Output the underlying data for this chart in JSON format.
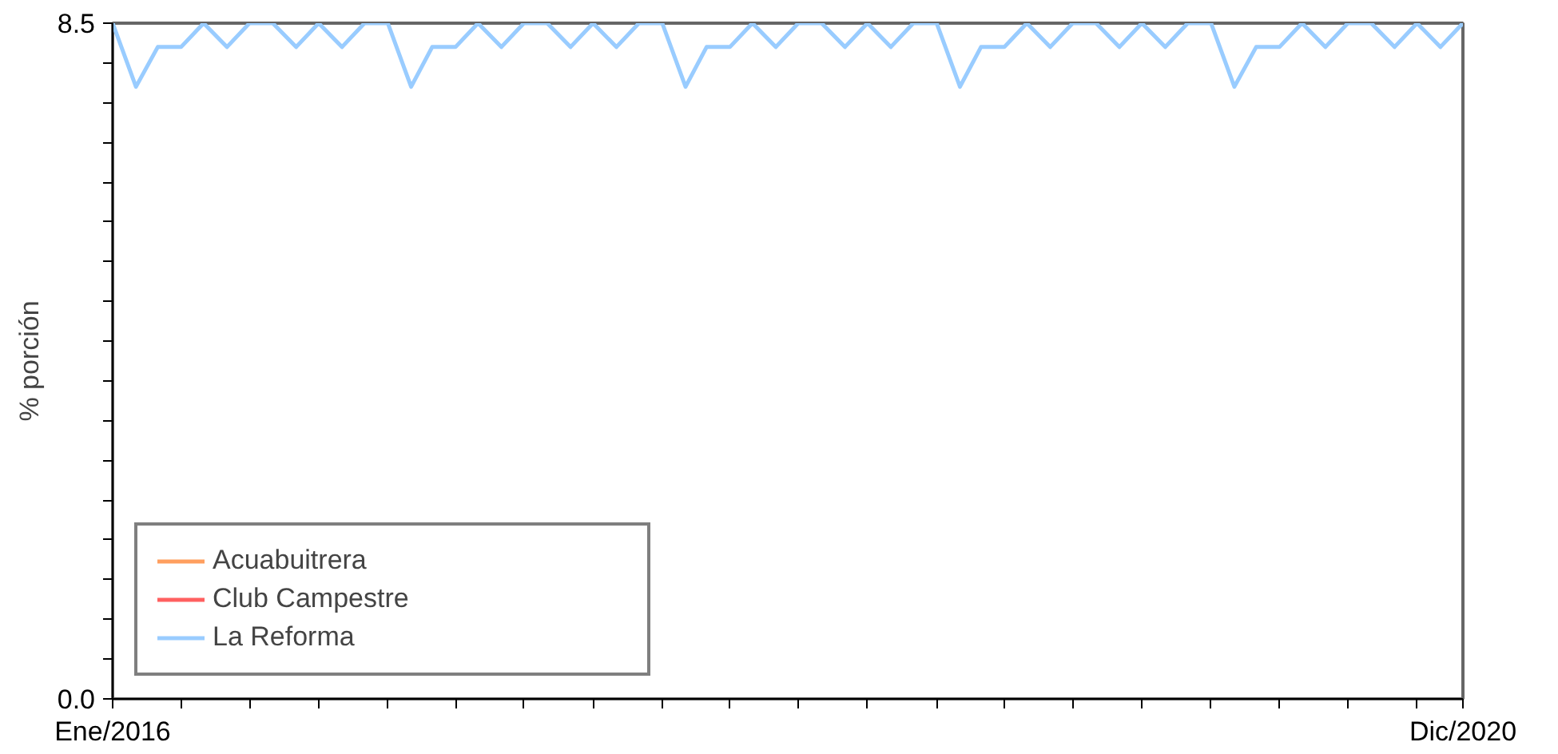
{
  "chart_data": {
    "type": "line",
    "ylabel": "% porción",
    "x": [
      "2016-01",
      "2016-02",
      "2016-03",
      "2016-04",
      "2016-05",
      "2016-06",
      "2016-07",
      "2016-08",
      "2016-09",
      "2016-10",
      "2016-11",
      "2016-12",
      "2017-01",
      "2017-02",
      "2017-03",
      "2017-04",
      "2017-05",
      "2017-06",
      "2017-07",
      "2017-08",
      "2017-09",
      "2017-10",
      "2017-11",
      "2017-12",
      "2018-01",
      "2018-02",
      "2018-03",
      "2018-04",
      "2018-05",
      "2018-06",
      "2018-07",
      "2018-08",
      "2018-09",
      "2018-10",
      "2018-11",
      "2018-12",
      "2019-01",
      "2019-02",
      "2019-03",
      "2019-04",
      "2019-05",
      "2019-06",
      "2019-07",
      "2019-08",
      "2019-09",
      "2019-10",
      "2019-11",
      "2019-12",
      "2020-01",
      "2020-02",
      "2020-03",
      "2020-04",
      "2020-05",
      "2020-06",
      "2020-07",
      "2020-08",
      "2020-09",
      "2020-10",
      "2020-11",
      "2020-12"
    ],
    "series": [
      {
        "name": "Acuabuitrera",
        "color": "#ff9f5f",
        "values": [
          null,
          null,
          null,
          null,
          null,
          null,
          null,
          null,
          null,
          null,
          null,
          null,
          null,
          null,
          null,
          null,
          null,
          null,
          null,
          null,
          null,
          null,
          null,
          null,
          null,
          null,
          null,
          null,
          null,
          null,
          null,
          null,
          null,
          null,
          null,
          null,
          null,
          null,
          null,
          null,
          null,
          null,
          null,
          null,
          null,
          null,
          null,
          null,
          null,
          null,
          null,
          null,
          null,
          null,
          null,
          null,
          null,
          null,
          null,
          null
        ]
      },
      {
        "name": "Club Campestre",
        "color": "#ff6060",
        "values": [
          null,
          null,
          null,
          null,
          null,
          null,
          null,
          null,
          null,
          null,
          null,
          null,
          null,
          null,
          null,
          null,
          null,
          null,
          null,
          null,
          null,
          null,
          null,
          null,
          null,
          null,
          null,
          null,
          null,
          null,
          null,
          null,
          null,
          null,
          null,
          null,
          null,
          null,
          null,
          null,
          null,
          null,
          null,
          null,
          null,
          null,
          null,
          null,
          null,
          null,
          null,
          null,
          null,
          null,
          null,
          null,
          null,
          null,
          null,
          null
        ]
      },
      {
        "name": "La Reforma",
        "color": "#99ccff",
        "values": [
          8.5,
          7.7,
          8.2,
          8.2,
          8.5,
          8.2,
          8.5,
          8.5,
          8.2,
          8.5,
          8.2,
          8.5,
          8.5,
          7.7,
          8.2,
          8.2,
          8.5,
          8.2,
          8.5,
          8.5,
          8.2,
          8.5,
          8.2,
          8.5,
          8.5,
          7.7,
          8.2,
          8.2,
          8.5,
          8.2,
          8.5,
          8.5,
          8.2,
          8.5,
          8.2,
          8.5,
          8.5,
          7.7,
          8.2,
          8.2,
          8.5,
          8.2,
          8.5,
          8.5,
          8.2,
          8.5,
          8.2,
          8.5,
          8.5,
          7.7,
          8.2,
          8.2,
          8.5,
          8.2,
          8.5,
          8.5,
          8.2,
          8.5,
          8.2,
          8.5
        ]
      }
    ],
    "xlim": [
      "2016-01",
      "2020-12"
    ],
    "xticks": [
      {
        "value": "2016-01",
        "label": "Ene/2016"
      },
      {
        "value": "2016-04",
        "label": null
      },
      {
        "value": "2016-07",
        "label": null
      },
      {
        "value": "2016-10",
        "label": null
      },
      {
        "value": "2017-01",
        "label": null
      },
      {
        "value": "2017-04",
        "label": null
      },
      {
        "value": "2017-07",
        "label": null
      },
      {
        "value": "2017-10",
        "label": null
      },
      {
        "value": "2018-01",
        "label": null
      },
      {
        "value": "2018-04",
        "label": null
      },
      {
        "value": "2018-07",
        "label": null
      },
      {
        "value": "2018-10",
        "label": null
      },
      {
        "value": "2019-01",
        "label": null
      },
      {
        "value": "2019-04",
        "label": null
      },
      {
        "value": "2019-07",
        "label": null
      },
      {
        "value": "2019-10",
        "label": null
      },
      {
        "value": "2020-01",
        "label": null
      },
      {
        "value": "2020-04",
        "label": null
      },
      {
        "value": "2020-07",
        "label": null
      },
      {
        "value": "2020-10",
        "label": null
      },
      {
        "value": "2020-12",
        "label": "Dic/2020"
      }
    ],
    "ylim": [
      0,
      8.5
    ],
    "yticks": [
      {
        "value": 0,
        "label": "0.0"
      },
      {
        "value": 0.5,
        "label": null
      },
      {
        "value": 1,
        "label": null
      },
      {
        "value": 1.5,
        "label": null
      },
      {
        "value": 2,
        "label": null
      },
      {
        "value": 2.5,
        "label": null
      },
      {
        "value": 3,
        "label": null
      },
      {
        "value": 3.5,
        "label": null
      },
      {
        "value": 4,
        "label": null
      },
      {
        "value": 4.5,
        "label": null
      },
      {
        "value": 5,
        "label": null
      },
      {
        "value": 5.5,
        "label": null
      },
      {
        "value": 6,
        "label": null
      },
      {
        "value": 6.5,
        "label": null
      },
      {
        "value": 7,
        "label": null
      },
      {
        "value": 7.5,
        "label": null
      },
      {
        "value": 8,
        "label": null
      },
      {
        "value": 8.5,
        "label": "8.5"
      }
    ],
    "grid": false,
    "legend": "bottom left",
    "marker": "none",
    "line_style": "solid"
  }
}
